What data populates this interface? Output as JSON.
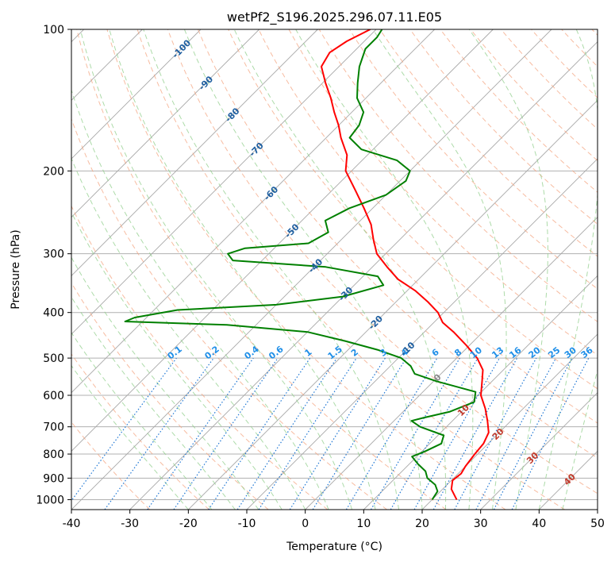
{
  "chart_data": {
    "type": "line",
    "title": "wetPf2_S196.2025.296.07.11.E05",
    "xlabel": "Temperature (°C)",
    "ylabel": "Pressure (hPa)",
    "xlim": [
      -40,
      50
    ],
    "ylim": [
      1050,
      100
    ],
    "y_scale": "log",
    "skew": "45-degree skew-T",
    "x_ticks": [
      "-40",
      "-30",
      "-20",
      "-10",
      "0",
      "10",
      "20",
      "30",
      "40",
      "50"
    ],
    "y_ticks": [
      "100",
      "200",
      "300",
      "400",
      "500",
      "600",
      "700",
      "800",
      "900",
      "1000"
    ],
    "grid": true,
    "series": [
      {
        "color": "#ff0000",
        "points": [
          {
            "p": 1000,
            "t": 24.2
          },
          {
            "p": 950,
            "t": 21.5
          },
          {
            "p": 910,
            "t": 20.2
          },
          {
            "p": 880,
            "t": 20.5
          },
          {
            "p": 850,
            "t": 20.0
          },
          {
            "p": 800,
            "t": 19.5
          },
          {
            "p": 760,
            "t": 19.2
          },
          {
            "p": 720,
            "t": 18.2
          },
          {
            "p": 680,
            "t": 16.0
          },
          {
            "p": 640,
            "t": 13.5
          },
          {
            "p": 600,
            "t": 10.5
          },
          {
            "p": 560,
            "t": 8.3
          },
          {
            "p": 530,
            "t": 6.5
          },
          {
            "p": 500,
            "t": 3.5
          },
          {
            "p": 470,
            "t": -0.5
          },
          {
            "p": 440,
            "t": -5.0
          },
          {
            "p": 420,
            "t": -8.5
          },
          {
            "p": 400,
            "t": -11.0
          },
          {
            "p": 380,
            "t": -14.5
          },
          {
            "p": 360,
            "t": -18.5
          },
          {
            "p": 340,
            "t": -23.5
          },
          {
            "p": 320,
            "t": -27.5
          },
          {
            "p": 300,
            "t": -31.5
          },
          {
            "p": 280,
            "t": -34.5
          },
          {
            "p": 260,
            "t": -37.5
          },
          {
            "p": 240,
            "t": -41.5
          },
          {
            "p": 220,
            "t": -46.0
          },
          {
            "p": 200,
            "t": -51.0
          },
          {
            "p": 185,
            "t": -53.5
          },
          {
            "p": 170,
            "t": -57.5
          },
          {
            "p": 160,
            "t": -60.0
          },
          {
            "p": 150,
            "t": -63.0
          },
          {
            "p": 140,
            "t": -66.0
          },
          {
            "p": 130,
            "t": -69.5
          },
          {
            "p": 120,
            "t": -73.0
          },
          {
            "p": 112,
            "t": -74.0
          },
          {
            "p": 106,
            "t": -73.0
          },
          {
            "p": 100,
            "t": -71.0
          }
        ]
      },
      {
        "color": "#008000",
        "points": [
          {
            "p": 1000,
            "t": 20.0
          },
          {
            "p": 960,
            "t": 19.5
          },
          {
            "p": 930,
            "t": 18.0
          },
          {
            "p": 900,
            "t": 15.5
          },
          {
            "p": 870,
            "t": 14.0
          },
          {
            "p": 840,
            "t": 11.5
          },
          {
            "p": 810,
            "t": 9.2
          },
          {
            "p": 790,
            "t": 10.5
          },
          {
            "p": 760,
            "t": 12.0
          },
          {
            "p": 730,
            "t": 11.0
          },
          {
            "p": 700,
            "t": 5.5
          },
          {
            "p": 680,
            "t": 3.0
          },
          {
            "p": 670,
            "t": 4.5
          },
          {
            "p": 650,
            "t": 8.0
          },
          {
            "p": 620,
            "t": 10.5
          },
          {
            "p": 590,
            "t": 9.0
          },
          {
            "p": 560,
            "t": 0.5
          },
          {
            "p": 540,
            "t": -4.5
          },
          {
            "p": 520,
            "t": -6.5
          },
          {
            "p": 500,
            "t": -9.5
          },
          {
            "p": 480,
            "t": -15.0
          },
          {
            "p": 460,
            "t": -22.0
          },
          {
            "p": 440,
            "t": -30.0
          },
          {
            "p": 425,
            "t": -45.0
          },
          {
            "p": 418,
            "t": -63.0
          },
          {
            "p": 410,
            "t": -62.0
          },
          {
            "p": 395,
            "t": -56.0
          },
          {
            "p": 385,
            "t": -40.0
          },
          {
            "p": 370,
            "t": -30.0
          },
          {
            "p": 350,
            "t": -25.0
          },
          {
            "p": 335,
            "t": -27.5
          },
          {
            "p": 320,
            "t": -38.0
          },
          {
            "p": 310,
            "t": -55.0
          },
          {
            "p": 300,
            "t": -57.0
          },
          {
            "p": 292,
            "t": -55.0
          },
          {
            "p": 285,
            "t": -45.0
          },
          {
            "p": 270,
            "t": -43.5
          },
          {
            "p": 255,
            "t": -46.0
          },
          {
            "p": 240,
            "t": -44.0
          },
          {
            "p": 225,
            "t": -40.0
          },
          {
            "p": 210,
            "t": -39.0
          },
          {
            "p": 200,
            "t": -40.0
          },
          {
            "p": 190,
            "t": -44.0
          },
          {
            "p": 180,
            "t": -52.0
          },
          {
            "p": 170,
            "t": -56.0
          },
          {
            "p": 160,
            "t": -56.5
          },
          {
            "p": 150,
            "t": -58.0
          },
          {
            "p": 140,
            "t": -61.5
          },
          {
            "p": 130,
            "t": -64.0
          },
          {
            "p": 120,
            "t": -66.5
          },
          {
            "p": 110,
            "t": -68.5
          },
          {
            "p": 104,
            "t": -68.5
          },
          {
            "p": 100,
            "t": -69.0
          }
        ]
      }
    ],
    "isotherm_labels": [
      "-100",
      "-90",
      "-80",
      "-70",
      "-60",
      "-50",
      "-40",
      "-30",
      "-20",
      "-10",
      "0",
      "10",
      "20",
      "30",
      "40"
    ],
    "mixing_ratio_labels": [
      "0.1",
      "0.2",
      "0.4",
      "0.6",
      "1",
      "1.5",
      "2",
      "3",
      "4",
      "6",
      "8",
      "10",
      "13",
      "16",
      "20",
      "25",
      "30",
      "36"
    ],
    "colors": {
      "temperature": "#ff0000",
      "dewpoint": "#008000",
      "dry_adiabat": "#f4a582",
      "moist_adiabat": "#91cf8c",
      "mixing_ratio": "#1f77d4",
      "isotherm": "#000000"
    }
  }
}
